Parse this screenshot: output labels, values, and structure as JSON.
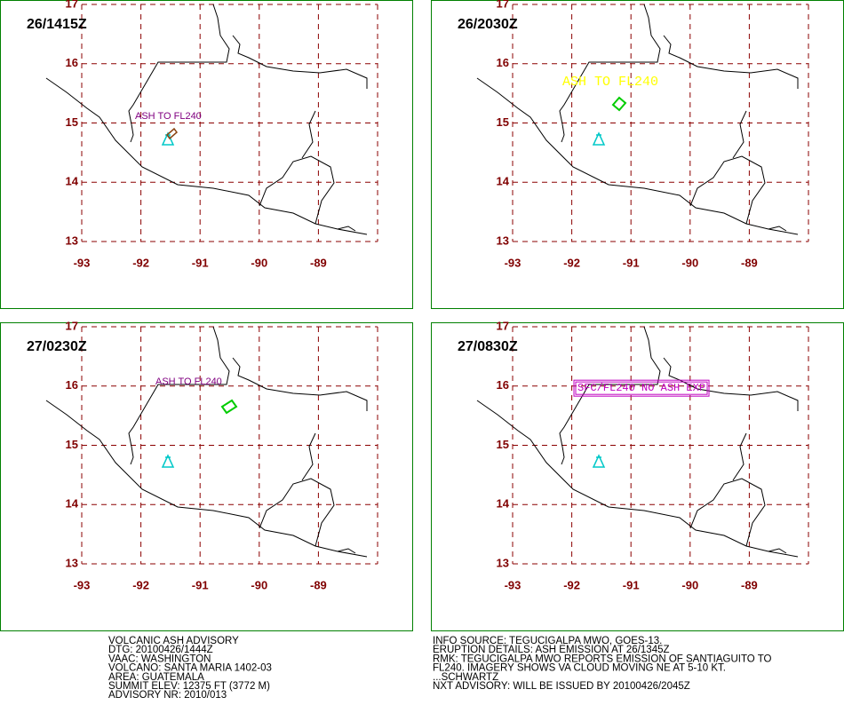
{
  "panels": [
    {
      "time": "26/1415Z",
      "annotation": "ASH TO FL240"
    },
    {
      "time": "26/2030Z",
      "annotation": "ASH TO FL240"
    },
    {
      "time": "27/0230Z",
      "annotation": "ASH TO FL240"
    },
    {
      "time": "27/0830Z",
      "annotation": "SFC/FL240 NO ASH EXP"
    }
  ],
  "grid": {
    "xlim": [
      -93,
      -88
    ],
    "xticks": [
      -93,
      -92,
      -91,
      -90,
      -89
    ],
    "ylim": [
      13,
      17
    ],
    "yticks": [
      13,
      14,
      15,
      16,
      17
    ]
  },
  "advisory_left": [
    "VOLCANIC ASH ADVISORY",
    "DTG: 20100426/1444Z",
    "VAAC: WASHINGTON",
    "VOLCANO: SANTA MARIA 1402-03",
    "AREA: GUATEMALA",
    "SUMMIT ELEV: 12375 FT (3772 M)",
    "ADVISORY NR: 2010/013"
  ],
  "advisory_right": [
    "INFO SOURCE: TEGUCIGALPA MWO, GOES-13.",
    "ERUPTION DETAILS: ASH EMISSION AT 26/1345Z",
    "RMK: TEGUCIGALPA MWO REPORTS EMISSION OF SANTIAGUITO TO",
    "FL240. IMAGERY SHOWS VA CLOUD MOVING NE AT 5-10 KT.",
    "...SCHWARTZ",
    "NXT ADVISORY: WILL BE ISSUED BY 20100426/2045Z"
  ]
}
